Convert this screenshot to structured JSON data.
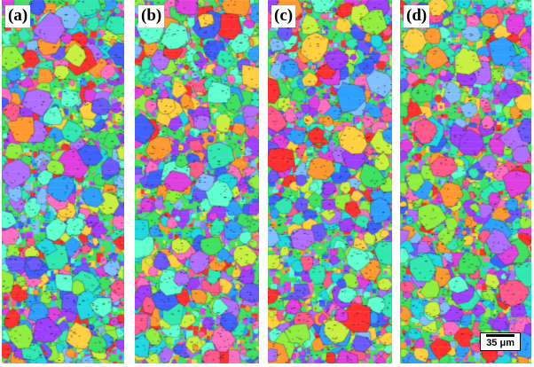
{
  "panels": [
    {
      "label": "(a)",
      "seed": 11
    },
    {
      "label": "(b)",
      "seed": 23
    },
    {
      "label": "(c)",
      "seed": 37
    },
    {
      "label": "(d)",
      "seed": 53
    }
  ],
  "scale_bar": {
    "text": "35 μm"
  },
  "palette": [
    "#ff3030",
    "#ff5a8c",
    "#e040e0",
    "#a040ff",
    "#6a5aff",
    "#4060ff",
    "#30a0ff",
    "#20d8e0",
    "#30e8b0",
    "#40e060",
    "#90ee40",
    "#c8f040",
    "#ffd040",
    "#ff9a30",
    "#ff70c0",
    "#b070ff",
    "#60ffd0",
    "#80c0ff"
  ]
}
